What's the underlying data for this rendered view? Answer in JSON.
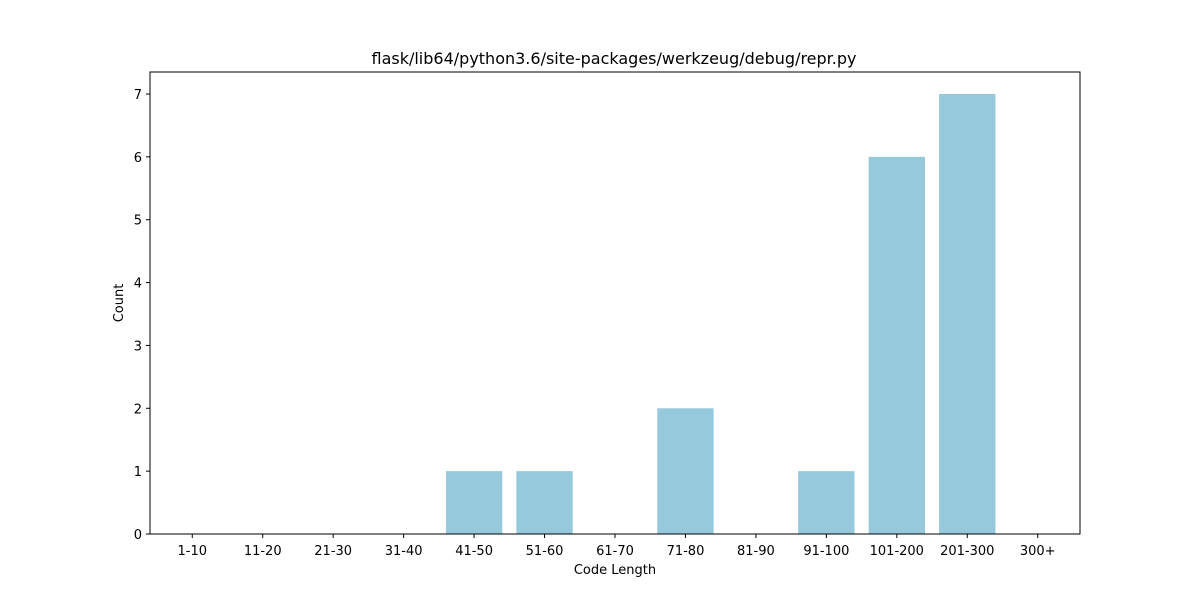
{
  "chart_data": {
    "type": "bar",
    "title": "flask/lib64/python3.6/site-packages/werkzeug/debug/repr.py",
    "xlabel": "Code Length",
    "ylabel": "Count",
    "categories": [
      "1-10",
      "11-20",
      "21-30",
      "31-40",
      "41-50",
      "51-60",
      "61-70",
      "71-80",
      "81-90",
      "91-100",
      "101-200",
      "201-300",
      "300+"
    ],
    "values": [
      0,
      0,
      0,
      0,
      1,
      1,
      0,
      2,
      0,
      1,
      6,
      7,
      0
    ],
    "ylim": [
      0,
      7.35
    ],
    "yticks": [
      0,
      1,
      2,
      3,
      4,
      5,
      6,
      7
    ],
    "bar_color": "#96c9dc",
    "grid": false,
    "legend": "none"
  }
}
